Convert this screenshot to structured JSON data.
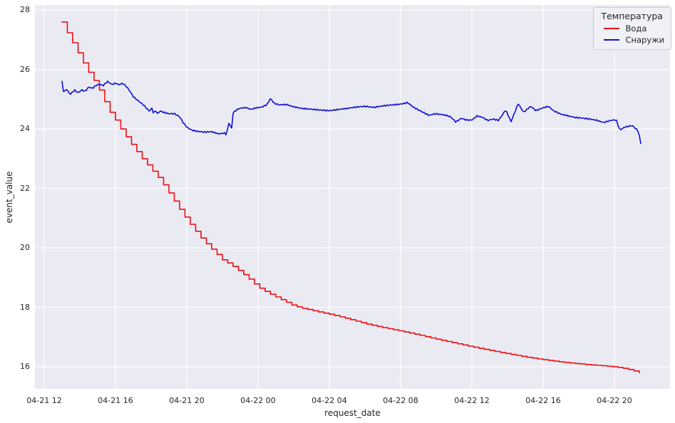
{
  "figure": {
    "background": "#ffffff",
    "plot_background": "#eaeaf2",
    "grid_color": "#ffffff",
    "text_color": "#262626"
  },
  "chart_data": {
    "type": "line",
    "title": "",
    "xlabel": "request_date",
    "ylabel": "event_value",
    "grid": true,
    "legend": {
      "title": "Температура",
      "position": "upper right",
      "entries": [
        {
          "label": "Вода",
          "color": "#ee0e14"
        },
        {
          "label": "Снаружи",
          "color": "#0f0fd6"
        }
      ]
    },
    "x_axis": {
      "unit": "hours since 04-21 12:00",
      "lim": [
        -0.52,
        35.12
      ],
      "tick_hours": [
        0,
        4,
        8,
        12,
        16,
        20,
        24,
        28,
        32
      ],
      "tick_labels": [
        "04-21 12",
        "04-21 16",
        "04-21 20",
        "04-22 00",
        "04-22 04",
        "04-22 08",
        "04-22 12",
        "04-22 16",
        "04-22 20"
      ]
    },
    "y_axis": {
      "lim": [
        15.26,
        28.17
      ],
      "ticks": [
        16,
        18,
        20,
        22,
        24,
        26,
        28
      ]
    },
    "series": [
      {
        "name": "Вода",
        "color": "#ee0e14",
        "style": "staircase",
        "points": [
          [
            1.0,
            27.6
          ],
          [
            1.2,
            27.35
          ],
          [
            1.4,
            27.12
          ],
          [
            1.6,
            26.9
          ],
          [
            1.8,
            26.67
          ],
          [
            2.0,
            26.45
          ],
          [
            2.2,
            26.22
          ],
          [
            2.4,
            26.0
          ],
          [
            2.7,
            25.72
          ],
          [
            3.0,
            25.45
          ],
          [
            3.25,
            25.1
          ],
          [
            3.5,
            24.8
          ],
          [
            3.75,
            24.5
          ],
          [
            4.0,
            24.3
          ],
          [
            4.3,
            24.0
          ],
          [
            4.7,
            23.65
          ],
          [
            5.0,
            23.4
          ],
          [
            5.5,
            23.0
          ],
          [
            6.0,
            22.65
          ],
          [
            6.5,
            22.3
          ],
          [
            7.0,
            21.85
          ],
          [
            7.6,
            21.3
          ],
          [
            8.0,
            20.95
          ],
          [
            8.7,
            20.4
          ],
          [
            9.0,
            20.2
          ],
          [
            9.5,
            19.9
          ],
          [
            10.0,
            19.6
          ],
          [
            10.5,
            19.42
          ],
          [
            11.0,
            19.2
          ],
          [
            11.5,
            18.95
          ],
          [
            12.0,
            18.68
          ],
          [
            12.5,
            18.5
          ],
          [
            13.0,
            18.35
          ],
          [
            13.5,
            18.2
          ],
          [
            14.0,
            18.05
          ],
          [
            14.5,
            17.97
          ],
          [
            15.0,
            17.9
          ],
          [
            15.5,
            17.83
          ],
          [
            16.0,
            17.77
          ],
          [
            17.0,
            17.62
          ],
          [
            18.0,
            17.45
          ],
          [
            19.0,
            17.32
          ],
          [
            20.0,
            17.2
          ],
          [
            21.0,
            17.07
          ],
          [
            22.0,
            16.93
          ],
          [
            23.0,
            16.8
          ],
          [
            24.0,
            16.67
          ],
          [
            25.0,
            16.55
          ],
          [
            26.0,
            16.44
          ],
          [
            27.0,
            16.33
          ],
          [
            28.0,
            16.24
          ],
          [
            29.0,
            16.16
          ],
          [
            30.0,
            16.1
          ],
          [
            31.0,
            16.05
          ],
          [
            32.0,
            16.0
          ],
          [
            32.5,
            15.95
          ],
          [
            33.0,
            15.88
          ],
          [
            33.5,
            15.78
          ]
        ]
      },
      {
        "name": "Снаружи",
        "color": "#0f0fd6",
        "style": "line",
        "points": [
          [
            1.0,
            25.6
          ],
          [
            1.1,
            25.2
          ],
          [
            1.25,
            25.35
          ],
          [
            1.45,
            25.15
          ],
          [
            1.7,
            25.3
          ],
          [
            1.9,
            25.2
          ],
          [
            2.1,
            25.3
          ],
          [
            2.3,
            25.25
          ],
          [
            2.5,
            25.4
          ],
          [
            2.7,
            25.35
          ],
          [
            2.9,
            25.45
          ],
          [
            3.1,
            25.5
          ],
          [
            3.3,
            25.45
          ],
          [
            3.55,
            25.6
          ],
          [
            3.8,
            25.5
          ],
          [
            4.0,
            25.55
          ],
          [
            4.2,
            25.5
          ],
          [
            4.4,
            25.55
          ],
          [
            4.6,
            25.45
          ],
          [
            4.8,
            25.3
          ],
          [
            5.0,
            25.1
          ],
          [
            5.3,
            24.95
          ],
          [
            5.6,
            24.8
          ],
          [
            5.9,
            24.6
          ],
          [
            6.05,
            24.7
          ],
          [
            6.15,
            24.5
          ],
          [
            6.25,
            24.65
          ],
          [
            6.35,
            24.5
          ],
          [
            6.5,
            24.6
          ],
          [
            6.7,
            24.55
          ],
          [
            7.0,
            24.5
          ],
          [
            7.3,
            24.5
          ],
          [
            7.6,
            24.4
          ],
          [
            7.8,
            24.2
          ],
          [
            8.0,
            24.05
          ],
          [
            8.3,
            23.95
          ],
          [
            8.6,
            23.92
          ],
          [
            9.0,
            23.9
          ],
          [
            9.4,
            23.92
          ],
          [
            9.8,
            23.85
          ],
          [
            10.1,
            23.88
          ],
          [
            10.25,
            23.82
          ],
          [
            10.35,
            24.3
          ],
          [
            10.4,
            23.85
          ],
          [
            10.45,
            24.2
          ],
          [
            10.5,
            23.9
          ],
          [
            10.6,
            24.55
          ],
          [
            10.8,
            24.65
          ],
          [
            11.0,
            24.7
          ],
          [
            11.3,
            24.72
          ],
          [
            11.6,
            24.65
          ],
          [
            11.9,
            24.7
          ],
          [
            12.2,
            24.72
          ],
          [
            12.5,
            24.8
          ],
          [
            12.7,
            25.02
          ],
          [
            12.9,
            24.85
          ],
          [
            13.2,
            24.8
          ],
          [
            13.6,
            24.82
          ],
          [
            14.0,
            24.75
          ],
          [
            14.5,
            24.7
          ],
          [
            15.0,
            24.68
          ],
          [
            15.5,
            24.65
          ],
          [
            16.0,
            24.62
          ],
          [
            16.5,
            24.65
          ],
          [
            17.0,
            24.68
          ],
          [
            17.5,
            24.72
          ],
          [
            18.0,
            24.75
          ],
          [
            18.5,
            24.72
          ],
          [
            19.0,
            24.78
          ],
          [
            19.5,
            24.82
          ],
          [
            20.0,
            24.85
          ],
          [
            20.4,
            24.9
          ],
          [
            20.7,
            24.75
          ],
          [
            21.0,
            24.65
          ],
          [
            21.3,
            24.55
          ],
          [
            21.6,
            24.45
          ],
          [
            21.9,
            24.5
          ],
          [
            22.2,
            24.48
          ],
          [
            22.5,
            24.45
          ],
          [
            22.8,
            24.4
          ],
          [
            23.1,
            24.22
          ],
          [
            23.4,
            24.35
          ],
          [
            23.7,
            24.3
          ],
          [
            24.0,
            24.3
          ],
          [
            24.3,
            24.45
          ],
          [
            24.6,
            24.4
          ],
          [
            24.9,
            24.3
          ],
          [
            25.2,
            24.35
          ],
          [
            25.5,
            24.3
          ],
          [
            25.9,
            24.65
          ],
          [
            26.2,
            24.25
          ],
          [
            26.6,
            24.85
          ],
          [
            26.9,
            24.55
          ],
          [
            27.3,
            24.75
          ],
          [
            27.6,
            24.6
          ],
          [
            28.0,
            24.7
          ],
          [
            28.3,
            24.75
          ],
          [
            28.6,
            24.6
          ],
          [
            29.0,
            24.5
          ],
          [
            29.4,
            24.45
          ],
          [
            29.8,
            24.4
          ],
          [
            30.2,
            24.38
          ],
          [
            30.6,
            24.35
          ],
          [
            31.0,
            24.3
          ],
          [
            31.4,
            24.22
          ],
          [
            31.8,
            24.28
          ],
          [
            32.1,
            24.3
          ],
          [
            32.3,
            23.95
          ],
          [
            32.6,
            24.05
          ],
          [
            33.0,
            24.1
          ],
          [
            33.2,
            24.0
          ],
          [
            33.35,
            23.9
          ],
          [
            33.5,
            23.45
          ]
        ]
      }
    ]
  }
}
